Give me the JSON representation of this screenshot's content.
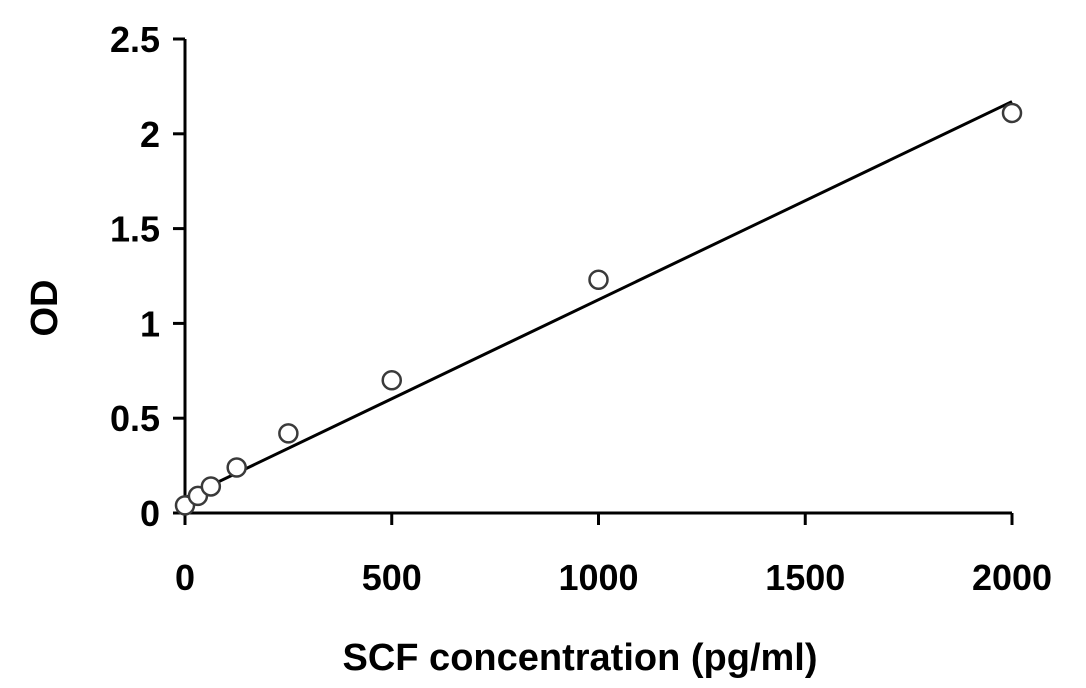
{
  "chart_data": {
    "type": "scatter",
    "title": "",
    "xlabel": "SCF concentration (pg/ml)",
    "ylabel": "OD",
    "xlim": [
      0,
      2000
    ],
    "ylim": [
      0,
      2.5
    ],
    "xticks": [
      0,
      500,
      1000,
      1500,
      2000
    ],
    "xtick_labels": [
      "0",
      "500",
      "1000",
      "1500",
      "2000"
    ],
    "yticks": [
      0,
      0.5,
      1,
      1.5,
      2,
      2.5
    ],
    "ytick_labels": [
      "0",
      "0.5",
      "1",
      "1.5",
      "2",
      "2.5"
    ],
    "grid": false,
    "legend": "none",
    "series": [
      {
        "x": [
          0,
          31.25,
          62.5,
          125,
          250,
          500,
          1000,
          2000
        ],
        "y": [
          0.04,
          0.09,
          0.14,
          0.24,
          0.42,
          0.7,
          1.23,
          2.11
        ],
        "marker": "open-circle"
      }
    ],
    "trendline": {
      "type": "linear",
      "x": [
        0,
        2000
      ],
      "y": [
        0.08,
        2.17
      ]
    },
    "colors": {
      "axis": "#000000",
      "marker_edge": "#3a3a3a",
      "marker_fill": "#ffffff",
      "line": "#000000"
    }
  }
}
